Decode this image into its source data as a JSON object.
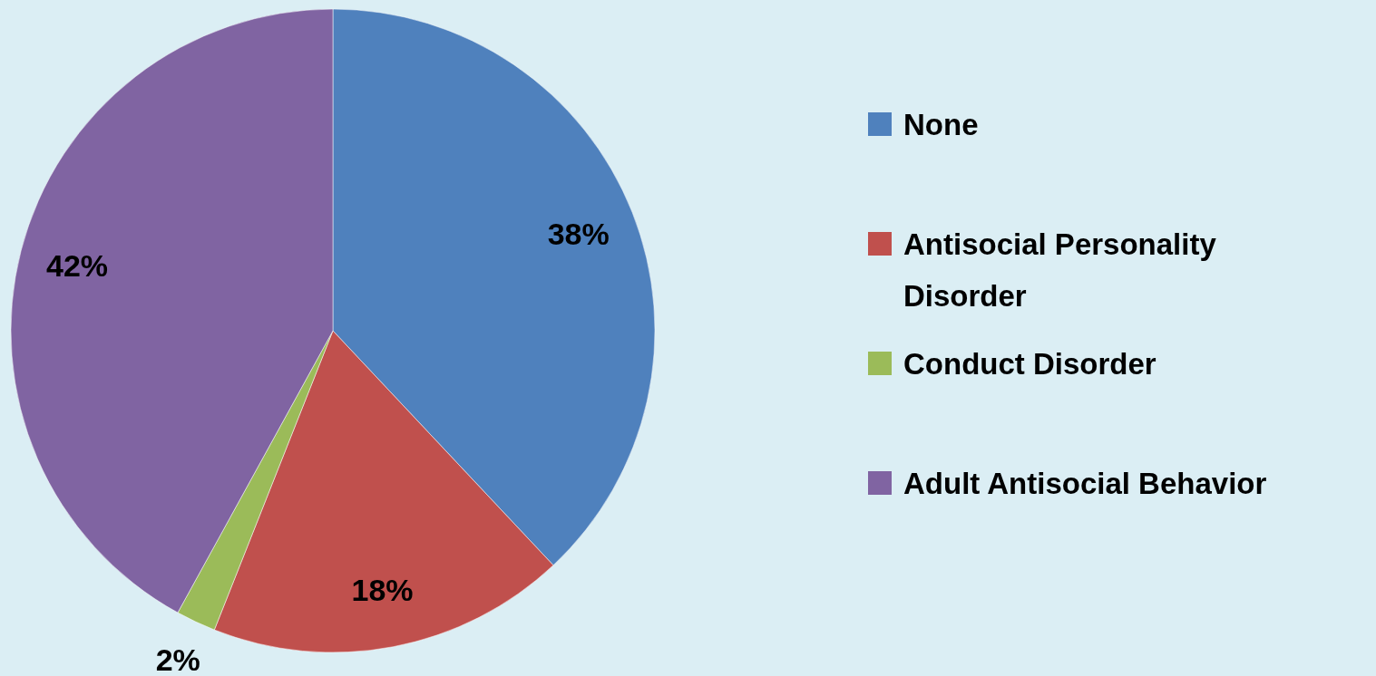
{
  "chart_data": {
    "type": "pie",
    "categories": [
      "None",
      "Antisocial Personality Disorder",
      "Conduct Disorder",
      "Adult Antisocial Behavior"
    ],
    "values": [
      38,
      18,
      2,
      42
    ],
    "colors": [
      "#4f81bd",
      "#c0504d",
      "#9bbb59",
      "#8064a2"
    ],
    "value_labels": [
      "38%",
      "18%",
      "2%",
      "42%"
    ],
    "legend": "right"
  }
}
